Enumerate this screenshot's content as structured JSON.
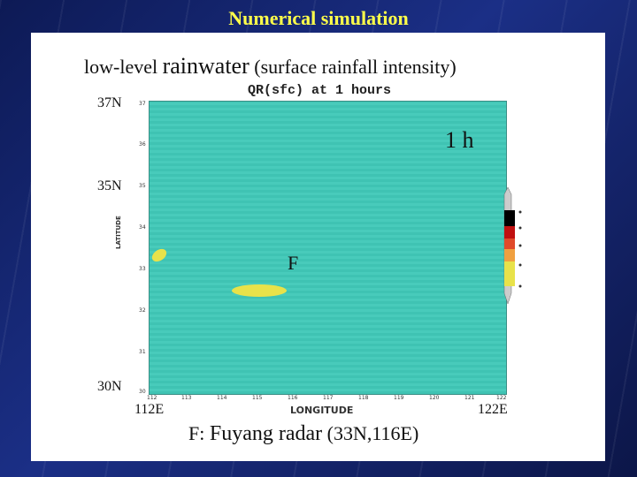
{
  "slide": {
    "title": "Numerical simulation"
  },
  "caption": {
    "pre": "low-level ",
    "main": "rainwater",
    "post": " (surface rainfall intensity)"
  },
  "plot": {
    "title": "QR(sfc) at 1 hours",
    "time_label": "1 h",
    "marker": "F",
    "y_axis_title": "LATITUDE",
    "x_axis_title": "LONGITUDE",
    "lat_labels": [
      "37N",
      "35N",
      "30N"
    ],
    "lon_labels": [
      "112E",
      "122E"
    ],
    "lat_ticks": [
      "37",
      "36",
      "35",
      "34",
      "33",
      "32",
      "31",
      "30"
    ],
    "lon_ticks": [
      "112",
      "113",
      "114",
      "115",
      "116",
      "117",
      "118",
      "119",
      "120",
      "121",
      "122"
    ],
    "colors": {
      "background_field": "#45c8b8",
      "rain": "#e8e24a",
      "legend": [
        "#e8e24a",
        "#f0a040",
        "#e04a2a",
        "#c01010",
        "#000000"
      ]
    }
  },
  "footer": {
    "pre": "F: ",
    "main": "Fuyang radar",
    "post": " (33N,116E)"
  }
}
